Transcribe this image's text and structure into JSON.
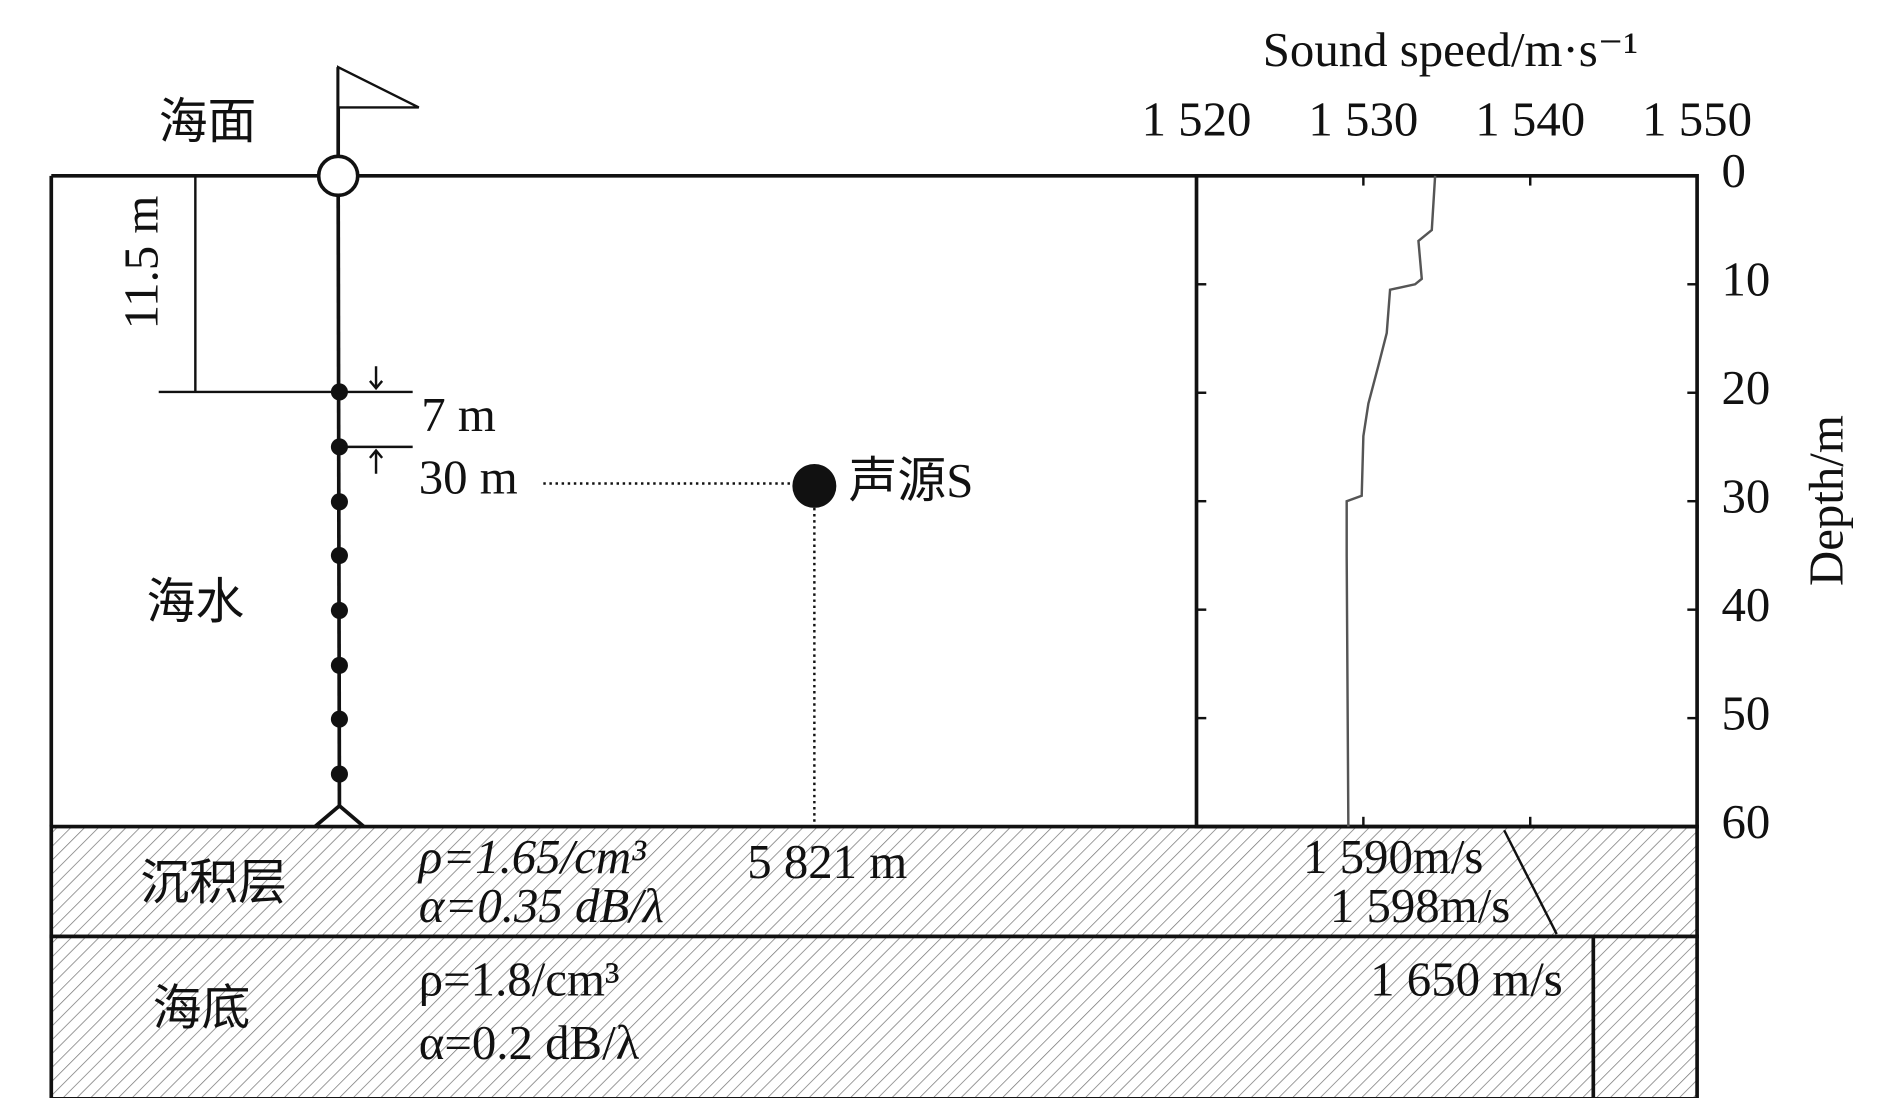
{
  "labels": {
    "sea_surface": "海面",
    "depth_span": "11.5 m",
    "spacing": "7 m",
    "source_depth": "30 m",
    "source": "声源S",
    "seawater": "海水",
    "sediment": "沉积层",
    "sediment_density": "ρ=1.65/cm³",
    "sediment_attenuation": "α=0.35 dB/λ",
    "range": "5 821 m",
    "sediment_speed_top": "1 590m/s",
    "sediment_speed_bottom": "1 598m/s",
    "seabed": "海底",
    "seabed_density": "ρ=1.8/cm³",
    "seabed_attenuation": "α=0.2 dB/λ",
    "seabed_speed": "1 650 m/s"
  },
  "chart_data": {
    "type": "line",
    "x_label": "Sound speed/m·s⁻¹",
    "y_label": "Depth/m",
    "y": [
      0,
      5,
      6,
      9.5,
      10,
      10.5,
      14.5,
      17.5,
      21,
      24,
      29.5,
      30,
      35,
      60
    ],
    "series": [
      {
        "color": "#555555",
        "values": [
          1534.3,
          1534.1,
          1533.3,
          1533.5,
          1533.1,
          1531.6,
          1531.4,
          1530.9,
          1530.3,
          1530,
          1529.9,
          1529,
          1529,
          1529.1
        ]
      }
    ],
    "xlim": [
      1520,
      1550
    ],
    "xticks": [
      {
        "value": 1520,
        "label": "1 520"
      },
      {
        "value": 1530,
        "label": "1 530"
      },
      {
        "value": 1540,
        "label": "1 540"
      },
      {
        "value": 1550,
        "label": "1 550"
      }
    ],
    "ylim": [
      0,
      60
    ],
    "yticks": [
      0,
      10,
      20,
      30,
      40,
      50,
      60
    ],
    "y_reversed": true
  }
}
